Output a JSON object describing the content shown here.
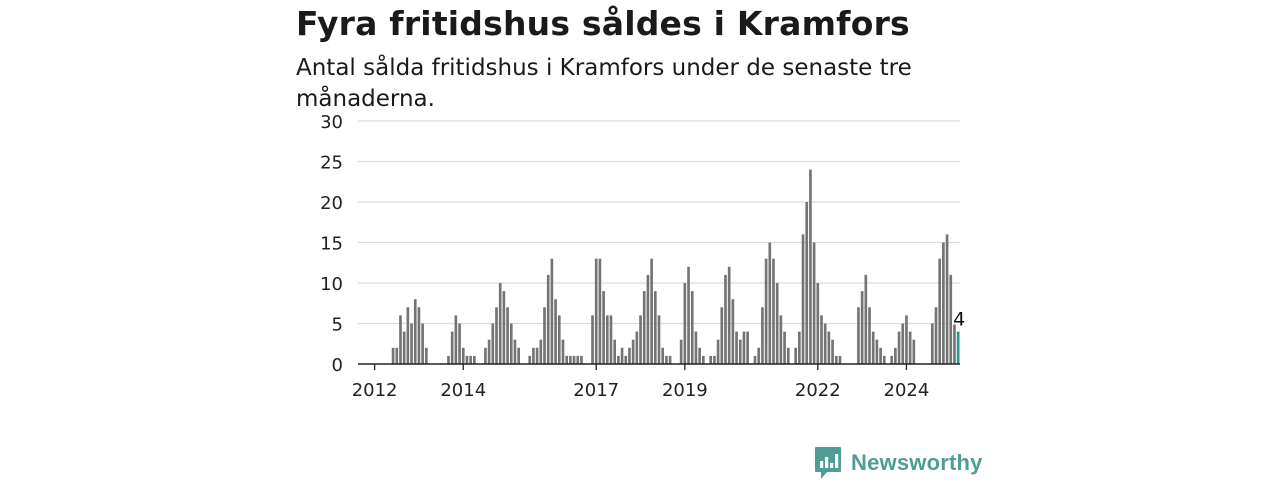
{
  "header": {
    "title": "Fyra fritidshus såldes i Kramfors",
    "subtitle": "Antal sålda fritidshus i Kramfors under de senaste tre månaderna."
  },
  "brand": {
    "name": "Newsworthy",
    "color": "#4e9d97",
    "icon": "newsworthy-logo-icon"
  },
  "chart_data": {
    "type": "bar",
    "title": "Fyra fritidshus såldes i Kramfors",
    "subtitle": "Antal sålda fritidshus i Kramfors under de senaste tre månaderna.",
    "xlabel": "",
    "ylabel": "",
    "ylim": [
      0,
      30
    ],
    "yticks": [
      0,
      5,
      10,
      15,
      20,
      25,
      30
    ],
    "grid": true,
    "bar_color": "#747474",
    "highlight_color": "#1f9a8f",
    "xtick_labels": [
      {
        "label": "2012",
        "index": 4
      },
      {
        "label": "2014",
        "index": 28
      },
      {
        "label": "2017",
        "index": 64
      },
      {
        "label": "2019",
        "index": 88
      },
      {
        "label": "2022",
        "index": 124
      },
      {
        "label": "2024",
        "index": 148
      }
    ],
    "values": [
      0,
      0,
      0,
      0,
      0,
      0,
      0,
      0,
      0,
      2,
      2,
      6,
      4,
      7,
      5,
      8,
      7,
      5,
      2,
      0,
      0,
      0,
      0,
      0,
      1,
      4,
      6,
      5,
      2,
      1,
      1,
      1,
      0,
      0,
      2,
      3,
      5,
      7,
      10,
      9,
      7,
      5,
      3,
      2,
      0,
      0,
      1,
      2,
      2,
      3,
      7,
      11,
      13,
      8,
      6,
      3,
      1,
      1,
      1,
      1,
      1,
      0,
      0,
      6,
      13,
      13,
      9,
      6,
      6,
      3,
      1,
      2,
      1,
      2,
      3,
      4,
      6,
      9,
      11,
      13,
      9,
      6,
      2,
      1,
      1,
      0,
      0,
      3,
      10,
      12,
      9,
      4,
      2,
      1,
      0,
      1,
      1,
      3,
      7,
      11,
      12,
      8,
      4,
      3,
      4,
      4,
      0,
      1,
      2,
      7,
      13,
      15,
      13,
      10,
      6,
      4,
      2,
      0,
      2,
      4,
      16,
      20,
      24,
      15,
      10,
      6,
      5,
      4,
      3,
      1,
      1,
      0,
      0,
      0,
      0,
      7,
      9,
      11,
      7,
      4,
      3,
      2,
      1,
      0,
      1,
      2,
      4,
      5,
      6,
      4,
      3,
      0,
      0,
      0,
      0,
      5,
      7,
      13,
      15,
      16,
      11,
      5,
      4
    ],
    "last_value_label": "4"
  }
}
